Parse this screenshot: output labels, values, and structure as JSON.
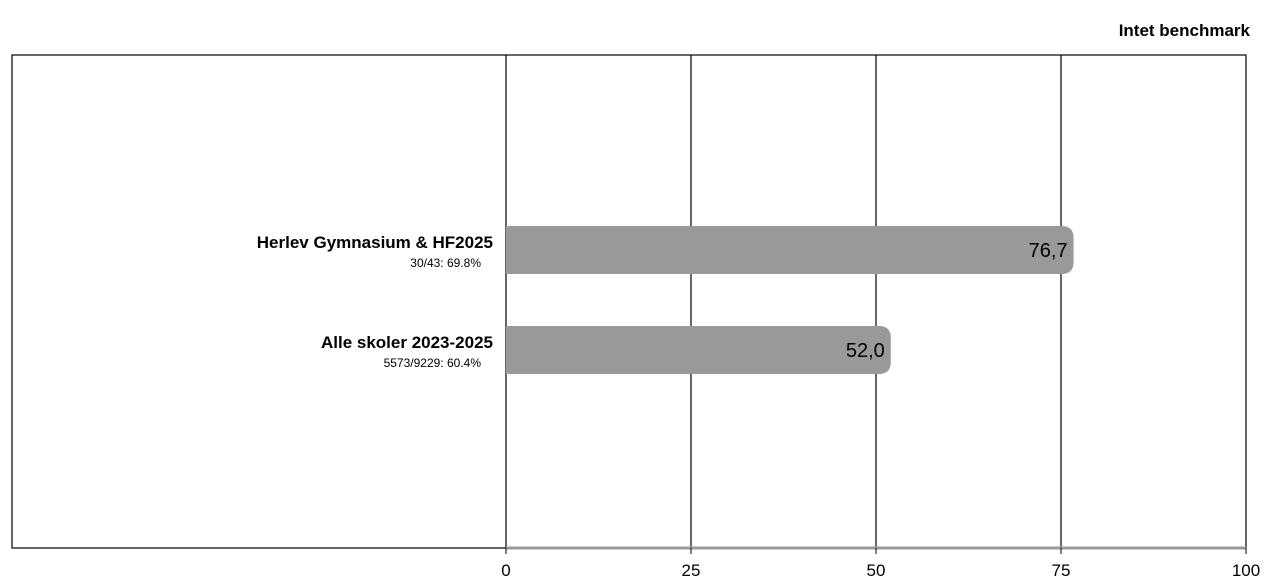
{
  "header": {
    "note": "Intet benchmark"
  },
  "chart_data": {
    "type": "bar",
    "orientation": "horizontal",
    "categories": [
      "Herlev Gymnasium & HF2025",
      "Alle skoler 2023-2025"
    ],
    "sublabels": [
      "30/43: 69.8%",
      "5573/9229: 60.4%"
    ],
    "values": [
      76.7,
      52.0
    ],
    "value_labels": [
      "76,7",
      "52,0"
    ],
    "xlim": [
      0,
      100
    ],
    "xticks": [
      0,
      25,
      50,
      75,
      100
    ],
    "grid": true,
    "bar_color": "#999999",
    "title": "",
    "xlabel": "",
    "ylabel": ""
  }
}
